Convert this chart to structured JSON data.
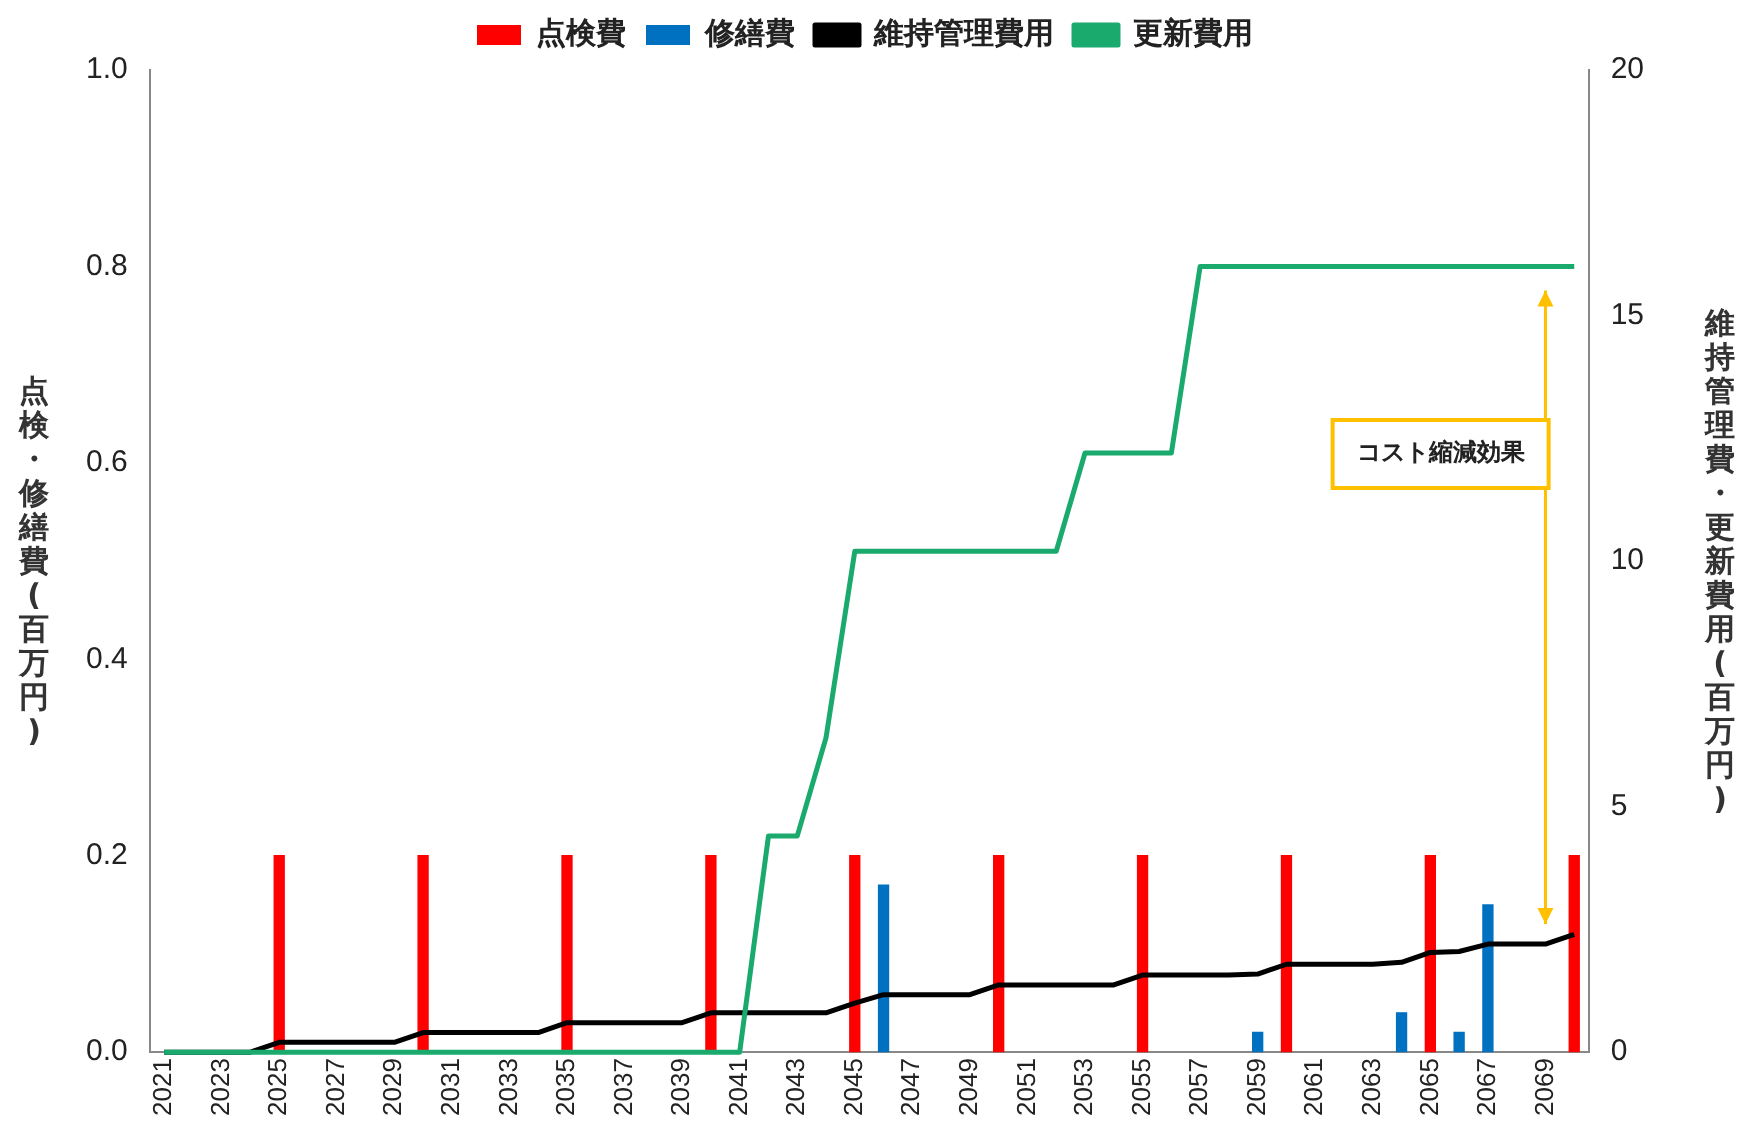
{
  "chart_data": {
    "type": "bar",
    "categories": [
      "2021",
      null,
      "2023",
      null,
      "2025",
      null,
      "2027",
      null,
      "2029",
      null,
      "2031",
      null,
      "2033",
      null,
      "2035",
      null,
      "2037",
      null,
      "2039",
      null,
      "2041",
      null,
      "2043",
      null,
      "2045",
      null,
      "2047",
      null,
      "2049",
      null,
      "2051",
      null,
      "2053",
      null,
      "2055",
      null,
      "2057",
      null,
      "2059",
      null,
      "2061",
      null,
      "2063",
      null,
      "2065",
      null,
      "2067",
      null,
      "2069",
      null
    ],
    "ylabel": "点検・修繕費(百万円)",
    "y2label": "維持管理費・更新費用(百万円)",
    "ylim": [
      0,
      1
    ],
    "yticks": [
      {
        "value": 0,
        "label": "0.0"
      },
      {
        "value": 0.2,
        "label": "0.2"
      },
      {
        "value": 0.4,
        "label": "0.4"
      },
      {
        "value": 0.6,
        "label": "0.6"
      },
      {
        "value": 0.8,
        "label": "0.8"
      },
      {
        "value": 1,
        "label": "1.0"
      }
    ],
    "y2lim": [
      0,
      20
    ],
    "y2ticks": [
      0,
      5,
      10,
      15,
      20
    ],
    "grid": false,
    "legend": "top",
    "marker": "none",
    "annotations": [
      "コスト縮減効果"
    ],
    "series": [
      {
        "name": "点検費",
        "color": "#ff0000",
        "values": [
          null,
          null,
          null,
          null,
          0.2,
          null,
          null,
          null,
          null,
          0.2,
          null,
          null,
          null,
          null,
          0.2,
          null,
          null,
          null,
          null,
          0.2,
          null,
          null,
          null,
          null,
          0.2,
          null,
          null,
          null,
          null,
          0.2,
          null,
          null,
          null,
          null,
          0.2,
          null,
          null,
          null,
          null,
          0.2,
          null,
          null,
          null,
          null,
          0.2,
          null,
          null,
          null,
          null,
          0.2
        ]
      },
      {
        "name": "修繕費",
        "color": "#0070c0",
        "values": [
          null,
          null,
          null,
          null,
          null,
          null,
          null,
          null,
          null,
          null,
          null,
          null,
          null,
          null,
          null,
          null,
          null,
          null,
          null,
          null,
          null,
          null,
          null,
          null,
          null,
          0.17,
          null,
          null,
          null,
          null,
          null,
          null,
          null,
          null,
          null,
          null,
          null,
          null,
          0.02,
          null,
          null,
          null,
          null,
          0.04,
          null,
          0.02,
          0.15,
          null,
          null,
          null
        ]
      },
      {
        "name": "維持管理費用",
        "type": "line",
        "axis": "y2",
        "color": "#000000",
        "values": [
          0,
          0,
          0,
          0,
          0.2,
          0.2,
          0.2,
          0.2,
          0.2,
          0.4,
          0.4,
          0.4,
          0.4,
          0.4,
          0.6,
          0.6,
          0.6,
          0.6,
          0.6,
          0.8,
          0.8,
          0.8,
          0.8,
          0.8,
          1.0,
          1.17,
          1.17,
          1.17,
          1.17,
          1.37,
          1.37,
          1.37,
          1.37,
          1.37,
          1.57,
          1.57,
          1.57,
          1.57,
          1.59,
          1.79,
          1.79,
          1.79,
          1.79,
          1.83,
          2.03,
          2.05,
          2.2,
          2.2,
          2.2,
          2.4
        ]
      },
      {
        "name": "更新費用",
        "type": "line",
        "axis": "y2",
        "color": "#1aaa6e",
        "values": [
          0,
          0,
          0,
          0,
          0,
          0,
          0,
          0,
          0,
          0,
          0,
          0,
          0,
          0,
          0,
          0,
          0,
          0,
          0,
          0,
          0,
          4.4,
          4.4,
          6.4,
          10.2,
          10.2,
          10.2,
          10.2,
          10.2,
          10.2,
          10.2,
          10.2,
          12.2,
          12.2,
          12.2,
          12.2,
          16,
          16,
          16,
          16,
          16,
          16,
          16,
          16,
          16,
          16,
          16,
          16,
          16,
          16
        ]
      }
    ]
  }
}
